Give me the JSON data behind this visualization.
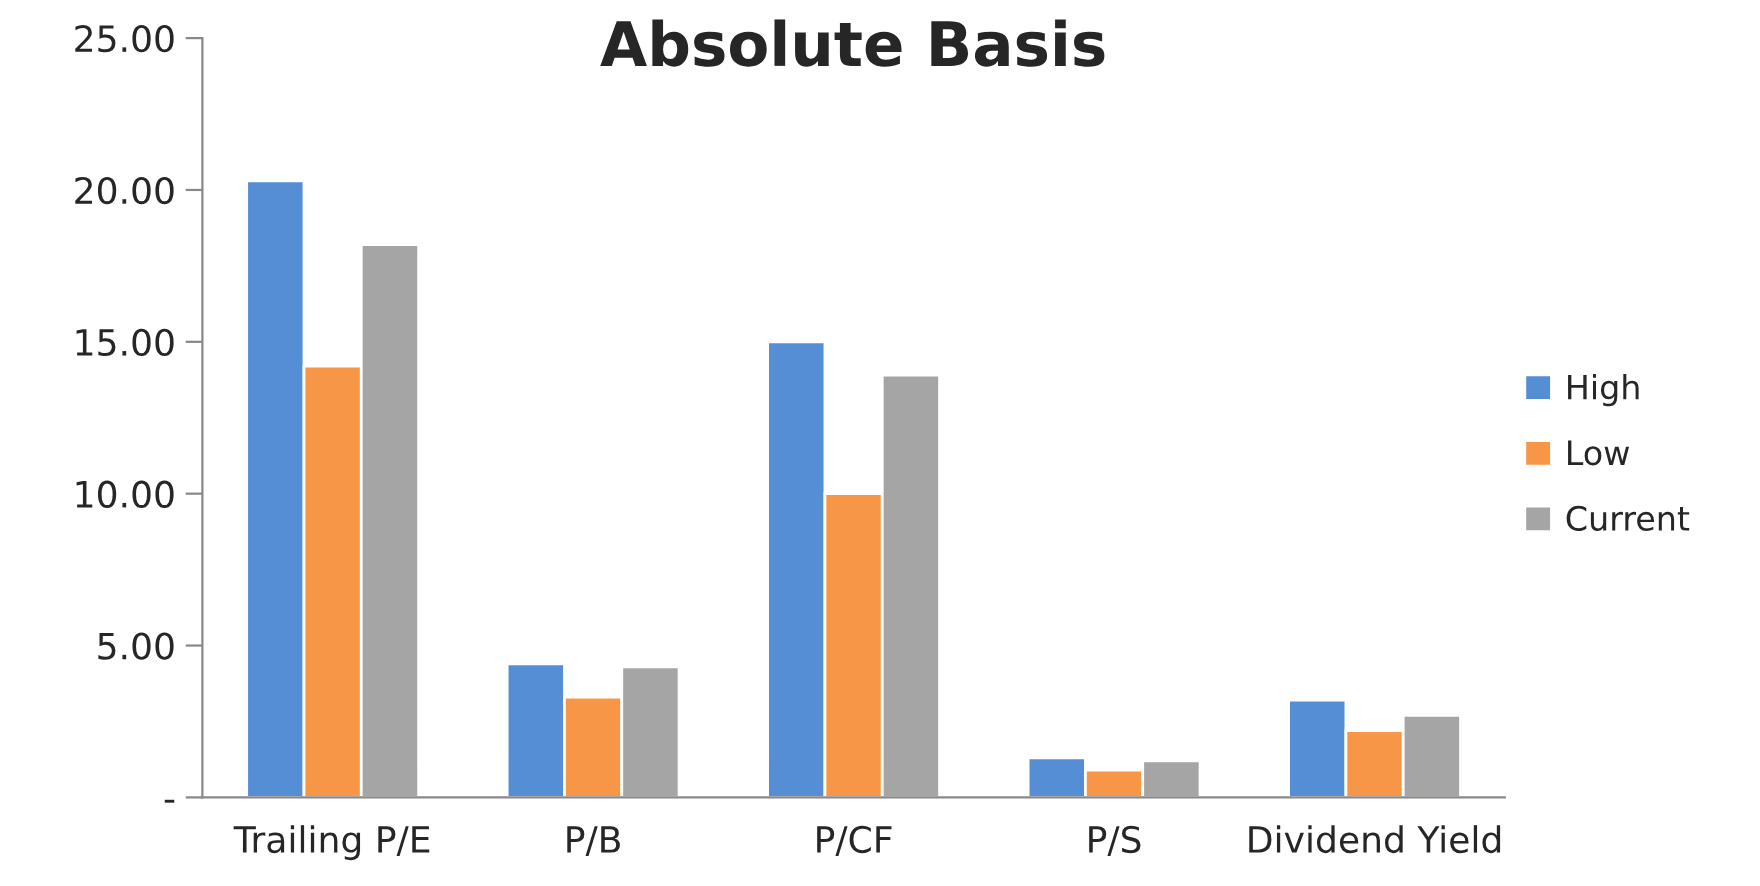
{
  "chart_data": {
    "type": "bar",
    "title": "Absolute Basis",
    "categories": [
      "Trailing P/E",
      "P/B",
      "P/CF",
      "P/S",
      "Dividend Yield"
    ],
    "series": [
      {
        "name": "High",
        "color": "#558ed5",
        "values": [
          20.3,
          4.4,
          15.0,
          1.3,
          3.2
        ]
      },
      {
        "name": "Low",
        "color": "#f79646",
        "values": [
          14.2,
          3.3,
          10.0,
          0.9,
          2.2
        ]
      },
      {
        "name": "Current",
        "color": "#a5a5a5",
        "values": [
          18.2,
          4.3,
          13.9,
          1.2,
          2.7
        ]
      }
    ],
    "ylim": [
      0,
      25
    ],
    "yticks": [
      {
        "value": 0,
        "label": "-"
      },
      {
        "value": 5,
        "label": "5.00"
      },
      {
        "value": 10,
        "label": "10.00"
      },
      {
        "value": 15,
        "label": "15.00"
      },
      {
        "value": 20,
        "label": "20.00"
      },
      {
        "value": 25,
        "label": "25.00"
      }
    ],
    "grid": false,
    "legend": "right"
  }
}
